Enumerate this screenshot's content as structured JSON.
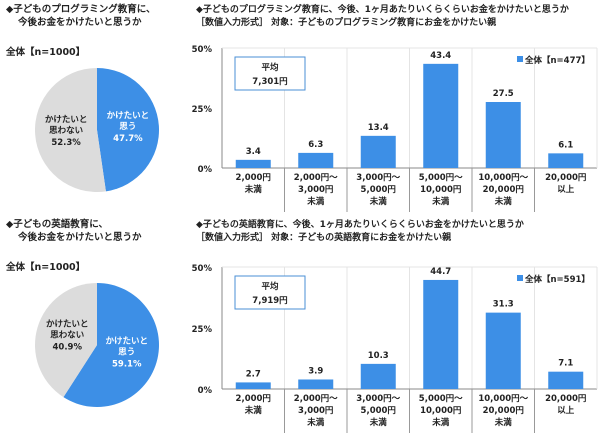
{
  "colors": {
    "blue": "#3d8fe6",
    "gray": "#dcdcdc"
  },
  "chart_data": [
    {
      "type": "pie",
      "title": [
        "◆子どものプログラミング教育に、",
        "今後お金をかけたいと思うか"
      ],
      "sample": "全体【n=1000】",
      "slices": [
        {
          "label": [
            "かけたいと",
            "思う"
          ],
          "value": 47.7,
          "display": "47.7%"
        },
        {
          "label": [
            "かけたいと",
            "思わない"
          ],
          "value": 52.3,
          "display": "52.3%"
        }
      ]
    },
    {
      "type": "bar",
      "title": "◆子どものプログラミング教育に、今後、1ヶ月あたりいくらくらいお金をかけたいと思うか",
      "subtitle": "［数値入力形式］ 対象：子どものプログラミング教育にお金をかけたい親",
      "legend": "全体【n=477】",
      "mean_label": "平均",
      "mean_value": "7,301円",
      "yticks": [
        "0%",
        "25%",
        "50%"
      ],
      "ylim": [
        0,
        50
      ],
      "categories": [
        [
          "2,000円",
          "未満"
        ],
        [
          "2,000円～",
          "3,000円",
          "未満"
        ],
        [
          "3,000円～",
          "5,000円",
          "未満"
        ],
        [
          "5,000円～",
          "10,000円",
          "未満"
        ],
        [
          "10,000円～",
          "20,000円",
          "未満"
        ],
        [
          "20,000円",
          "以上"
        ]
      ],
      "values": [
        3.4,
        6.3,
        13.4,
        43.4,
        27.5,
        6.1
      ]
    },
    {
      "type": "pie",
      "title": [
        "◆子どもの英語教育に、",
        "今後お金をかけたいと思うか"
      ],
      "sample": "全体【n=1000】",
      "slices": [
        {
          "label": [
            "かけたいと",
            "思う"
          ],
          "value": 59.1,
          "display": "59.1%"
        },
        {
          "label": [
            "かけたいと",
            "思わない"
          ],
          "value": 40.9,
          "display": "40.9%"
        }
      ]
    },
    {
      "type": "bar",
      "title": "◆子どもの英語教育に、今後、1ヶ月あたりいくらくらいお金をかけたいと思うか",
      "subtitle": "［数値入力形式］ 対象：子どもの英語教育にお金をかけたい親",
      "legend": "全体【n=591】",
      "mean_label": "平均",
      "mean_value": "7,919円",
      "yticks": [
        "0%",
        "25%",
        "50%"
      ],
      "ylim": [
        0,
        50
      ],
      "categories": [
        [
          "2,000円",
          "未満"
        ],
        [
          "2,000円～",
          "3,000円",
          "未満"
        ],
        [
          "3,000円～",
          "5,000円",
          "未満"
        ],
        [
          "5,000円～",
          "10,000円",
          "未満"
        ],
        [
          "10,000円～",
          "20,000円",
          "未満"
        ],
        [
          "20,000円",
          "以上"
        ]
      ],
      "values": [
        2.7,
        3.9,
        10.3,
        44.7,
        31.3,
        7.1
      ]
    }
  ]
}
